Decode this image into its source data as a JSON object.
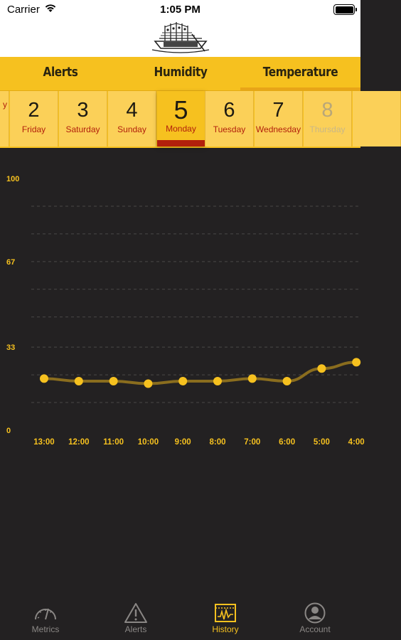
{
  "status_bar": {
    "carrier": "Carrier",
    "time": "1:05 PM"
  },
  "tabs": [
    {
      "label": "Alerts",
      "selected": false
    },
    {
      "label": "Humidity",
      "selected": false
    },
    {
      "label": "Temperature",
      "selected": true
    }
  ],
  "days": [
    {
      "num": "",
      "name": "y",
      "state": "normal"
    },
    {
      "num": "2",
      "name": "Friday",
      "state": "normal"
    },
    {
      "num": "3",
      "name": "Saturday",
      "state": "normal"
    },
    {
      "num": "4",
      "name": "Sunday",
      "state": "normal"
    },
    {
      "num": "5",
      "name": "Monday",
      "state": "selected"
    },
    {
      "num": "6",
      "name": "Tuesday",
      "state": "normal"
    },
    {
      "num": "7",
      "name": "Wednesday",
      "state": "normal"
    },
    {
      "num": "8",
      "name": "Thursday",
      "state": "disabled"
    }
  ],
  "chart_data": {
    "type": "line",
    "title": "",
    "xlabel": "",
    "ylabel": "",
    "x": [
      "13:00",
      "12:00",
      "11:00",
      "10:00",
      "9:00",
      "8:00",
      "7:00",
      "6:00",
      "5:00",
      "4:00"
    ],
    "y_ticks": [
      "100",
      "67",
      "33",
      "0"
    ],
    "ylim": [
      0,
      100
    ],
    "series": [
      {
        "values": [
          20.5,
          19.5,
          19.5,
          18.5,
          19.5,
          19.5,
          20.5,
          19.5,
          24.5,
          27.0
        ],
        "color": "#f6c11f",
        "line_color": "#8a6d1e"
      }
    ],
    "grid": true,
    "legend": "none"
  },
  "tabbar": [
    {
      "label": "Metrics",
      "icon": "gauge-icon",
      "active": false
    },
    {
      "label": "Alerts",
      "icon": "warning-icon",
      "active": false
    },
    {
      "label": "History",
      "icon": "chart-history-icon",
      "active": true
    },
    {
      "label": "Account",
      "icon": "account-icon",
      "active": false
    }
  ],
  "colors": {
    "accent": "#f6c11f",
    "accent_dark": "#b2200c",
    "background": "#232122"
  }
}
